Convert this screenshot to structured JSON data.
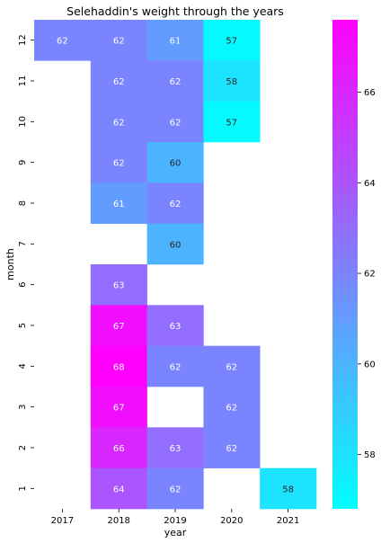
{
  "chart_data": {
    "type": "heatmap",
    "title": "Selehaddin's weight through the years",
    "xlabel": "year",
    "ylabel": "month",
    "x_categories": [
      "2017",
      "2018",
      "2019",
      "2020",
      "2021"
    ],
    "y_categories": [
      "12",
      "11",
      "10",
      "9",
      "8",
      "7",
      "6",
      "5",
      "4",
      "3",
      "2",
      "1"
    ],
    "values": [
      [
        62,
        62,
        61,
        57,
        null
      ],
      [
        null,
        62,
        62,
        58,
        null
      ],
      [
        null,
        62,
        62,
        57,
        null
      ],
      [
        null,
        62,
        60,
        null,
        null
      ],
      [
        null,
        61,
        62,
        null,
        null
      ],
      [
        null,
        null,
        60,
        null,
        null
      ],
      [
        null,
        63,
        null,
        null,
        null
      ],
      [
        null,
        67,
        63,
        null,
        null
      ],
      [
        null,
        68,
        62,
        62,
        null
      ],
      [
        null,
        67,
        null,
        62,
        null
      ],
      [
        null,
        66,
        63,
        62,
        null
      ],
      [
        null,
        64,
        62,
        null,
        58
      ]
    ],
    "colormap": "cool",
    "colorbar": {
      "min": 56.8,
      "max": 67.6,
      "ticks": [
        58,
        60,
        62,
        64,
        66
      ]
    },
    "colors": {
      "low": "#00ffff",
      "high": "#ff00ff"
    }
  }
}
